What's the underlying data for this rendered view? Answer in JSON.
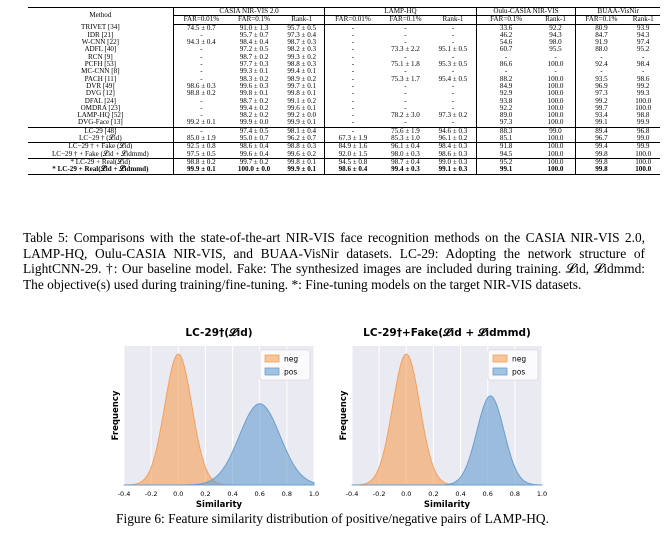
{
  "table": {
    "method_header": "Method",
    "groups": [
      "CASIA NIR-VIS 2.0",
      "LAMP-HQ",
      "Oulu-CASIA NIR-VIS",
      "BUAA-VisNir"
    ],
    "subheaders": [
      "FAR=0.01%",
      "FAR=0.1%",
      "Rank-1",
      "FAR=0.01%",
      "FAR=0.1%",
      "Rank-1",
      "FAR=0.1%",
      "Rank-1",
      "FAR=0.1%",
      "Rank-1"
    ],
    "section1": [
      [
        "TRIVET [34]",
        "74.5 ± 0.7",
        "91.0 ± 1.3",
        "95.7 ± 0.5",
        "-",
        "-",
        "-",
        "33.6",
        "92.2",
        "80.9",
        "93.9"
      ],
      [
        "IDR [21]",
        "-",
        "95.7 ± 0.7",
        "97.3 ± 0.4",
        "-",
        "-",
        "-",
        "46.2",
        "94.3",
        "84.7",
        "94.3"
      ],
      [
        "W-CNN [22]",
        "94.3 ± 0.4",
        "98.4 ± 0.4",
        "98.7 ± 0.3",
        "-",
        "-",
        "-",
        "54.6",
        "98.0",
        "91.9",
        "97.4"
      ],
      [
        "ADFL [40]",
        "-",
        "97.2 ± 0.5",
        "98.2 ± 0.3",
        "-",
        "73.3 ± 2.2",
        "95.1 ± 0.5",
        "60.7",
        "95.5",
        "88.0",
        "95.2"
      ],
      [
        "RCN [9]",
        "-",
        "98.7 ± 0.2",
        "99.3 ± 0.2",
        "-",
        "-",
        "-",
        "-",
        "-",
        "-",
        "-"
      ],
      [
        "PCFH [53]",
        "-",
        "97.7 ± 0.3",
        "98.8 ± 0.3",
        "-",
        "75.1 ± 1.8",
        "95.3 ± 0.5",
        "86.6",
        "100.0",
        "92.4",
        "98.4"
      ],
      [
        "MC-CNN [8]",
        "-",
        "99.3 ± 0.1",
        "99.4 ± 0.1",
        "-",
        "-",
        "-",
        "-",
        "-",
        "-",
        "-"
      ],
      [
        "PACH [11]",
        "-",
        "98.3 ± 0.2",
        "98.9 ± 0.2",
        "-",
        "75.3 ± 1.7",
        "95.4 ± 0.5",
        "88.2",
        "100.0",
        "93.5",
        "98.6"
      ],
      [
        "DVR [49]",
        "98.6 ± 0.3",
        "99.6 ± 0.3",
        "99.7 ± 0.1",
        "-",
        "-",
        "-",
        "84.9",
        "100.0",
        "96.9",
        "99.2"
      ],
      [
        "DVG [12]",
        "98.8 ± 0.2",
        "99.8 ± 0.1",
        "99.8 ± 0.1",
        "-",
        "-",
        "-",
        "92.9",
        "100.0",
        "97.3",
        "99.3"
      ],
      [
        "DFAL [24]",
        "-",
        "98.7 ± 0.2",
        "99.1 ± 0.2",
        "-",
        "-",
        "-",
        "93.8",
        "100.0",
        "99.2",
        "100.0"
      ],
      [
        "OMDRA [23]",
        "-",
        "99.4 ± 0.2",
        "99.6 ± 0.1",
        "-",
        "-",
        "-",
        "92.2",
        "100.0",
        "99.7",
        "100.0"
      ],
      [
        "LAMP-HQ [52]",
        "-",
        "98.2 ± 0.2",
        "99.2 ± 0.0",
        "-",
        "78.2 ± 3.0",
        "97.3 ± 0.2",
        "89.0",
        "100.0",
        "93.4",
        "98.8"
      ],
      [
        "DVG-Face [13]",
        "99.2 ± 0.1",
        "99.9 ± 0.0",
        "99.9 ± 0.1",
        "-",
        "-",
        "-",
        "97.3",
        "100.0",
        "99.1",
        "99.9"
      ]
    ],
    "section2": [
      [
        "LC-29 [48]",
        "-",
        "97.4 ± 0.5",
        "98.1 ± 0.4",
        "-",
        "75.6 ± 1.9",
        "94.6 ± 0.3",
        "88.3",
        "99.0",
        "89.4",
        "96.8"
      ],
      [
        "LC−29 † (𝓛id)",
        "85.0 ± 1.9",
        "95.0 ± 0.7",
        "96.2 ± 0.7",
        "67.3 ± 1.9",
        "85.3 ± 1.0",
        "96.1 ± 0.2",
        "85.1",
        "100.0",
        "96.7",
        "99.0"
      ]
    ],
    "section3": [
      [
        "LC−29 † + Fake (𝓛id)",
        "92.5 ± 0.8",
        "98.6 ± 0.4",
        "98.8 ± 0.3",
        "84.9 ± 1.6",
        "96.1 ± 0.4",
        "98.4 ± 0.3",
        "91.8",
        "100.0",
        "99.4",
        "99.9"
      ],
      [
        "LC−29 † + Fake (𝓛id + 𝓛idmmd)",
        "97.5 ± 0.5",
        "99.6 ± 0.4",
        "99.6 ± 0.2",
        "92.0 ± 1.5",
        "98.0 ± 0.3",
        "98.6 ± 0.3",
        "94.5",
        "100.0",
        "99.8",
        "100.0"
      ]
    ],
    "section4": [
      [
        "* LC-29 + Real(𝓛id)",
        "98.8 ± 0.2",
        "99.7 ± 0.2",
        "99.8 ± 0.1",
        "94.5 ± 0.8",
        "98.7 ± 0.4",
        "99.0 ± 0.3",
        "95.2",
        "100.0",
        "99.8",
        "100.0"
      ],
      [
        "* LC-29 + Real(𝓛id + 𝓛idmmd)",
        "99.9 ± 0.1",
        "100.0 ± 0.0",
        "99.9 ± 0.1",
        "98.6 ± 0.4",
        "99.4 ± 0.3",
        "99.1 ± 0.3",
        "99.1",
        "100.0",
        "99.8",
        "100.0"
      ]
    ]
  },
  "caption_table": "Table 5: Comparisons with the state-of-the-art NIR-VIS face recognition methods on the CASIA NIR-VIS 2.0, LAMP-HQ, Oulu-CASIA NIR-VIS, and BUAA-VisNir datasets. LC-29: Adopting the network structure of LightCNN-29. †: Our baseline model. Fake: The synthesized images are included during training. 𝓛id, 𝓛idmmd: The objective(s) used during training/fine-tuning. *: Fine-tuning models on the target NIR-VIS datasets.",
  "caption_figure": "Figure 6: Feature similarity distribution of positive/negative pairs of LAMP-HQ.",
  "colors": {
    "neg": "#f5a15c",
    "pos": "#6a9fd0",
    "grid_bg": "#eaeaf2"
  },
  "chart_data": [
    {
      "type": "area",
      "title": "LC-29†(𝓛id)",
      "xlabel": "Similarity",
      "ylabel": "Frequency",
      "xlim": [
        -0.4,
        1.0
      ],
      "xticks": [
        "-0.4",
        "-0.2",
        "0.0",
        "0.2",
        "0.4",
        "0.6",
        "0.8",
        "1.0"
      ],
      "legend": [
        "neg",
        "pos"
      ],
      "series": [
        {
          "name": "neg",
          "mean": 0.0,
          "std": 0.1,
          "peak": 1.0
        },
        {
          "name": "pos",
          "mean": 0.6,
          "std": 0.15,
          "peak": 0.62
        }
      ]
    },
    {
      "type": "area",
      "title": "LC-29†+Fake(𝓛id + 𝓛idmmd)",
      "xlabel": "Similarity",
      "ylabel": "Frequency",
      "xlim": [
        -0.4,
        1.0
      ],
      "xticks": [
        "-0.4",
        "-0.2",
        "0.0",
        "0.2",
        "0.4",
        "0.6",
        "0.8",
        "1.0"
      ],
      "legend": [
        "neg",
        "pos"
      ],
      "series": [
        {
          "name": "neg",
          "mean": 0.0,
          "std": 0.1,
          "peak": 1.0
        },
        {
          "name": "pos",
          "mean": 0.62,
          "std": 0.1,
          "peak": 0.68
        }
      ]
    }
  ]
}
